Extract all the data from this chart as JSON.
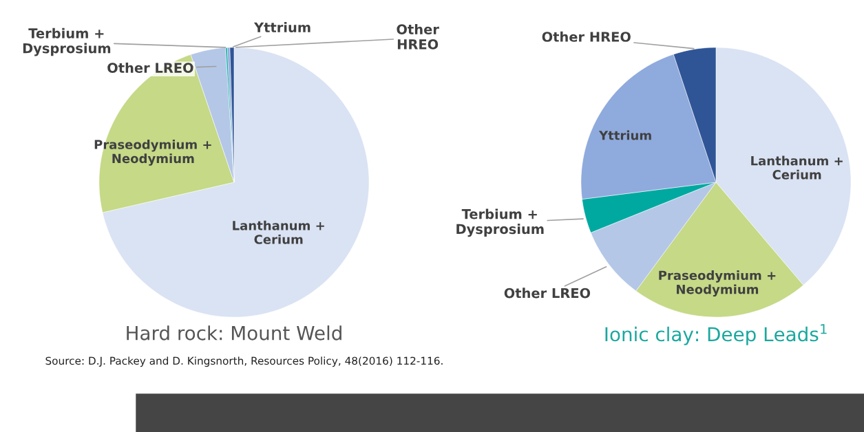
{
  "chart_data": [
    {
      "type": "pie",
      "title": "Hard rock: Mount Weld",
      "categories": [
        "Lanthanum +\nCerium",
        "Praseodymium +\nNeodymium",
        "Other LREO",
        "Terbium +\nDysprosium",
        "Yttrium",
        "Other\nHREO"
      ],
      "values": [
        71.4,
        23.4,
        4.2,
        0.2,
        0.3,
        0.5
      ],
      "colors": [
        "#dae3f3",
        "#c5d987",
        "#b4c7e7",
        "#00a9a0",
        "#8faadc",
        "#2f5597"
      ],
      "annotations": [
        "Source: D.J. Packey and D. Kingsnorth, Resources Policy, 48(2016) 112-116."
      ]
    },
    {
      "type": "pie",
      "title": "Ionic clay: Deep Leads$^{1}$",
      "categories": [
        "Lanthanum +\nCerium",
        "Praseodymium +\nNeodymium",
        "Other LREO",
        "Terbium +\nDysprosium",
        "Yttrium",
        "Other HREO"
      ],
      "values": [
        38.8,
        21.3,
        8.8,
        4.1,
        21.9,
        5.1
      ],
      "colors": [
        "#dae3f3",
        "#c5d987",
        "#b4c7e7",
        "#00a9a0",
        "#8faadc",
        "#2f5597"
      ]
    }
  ]
}
